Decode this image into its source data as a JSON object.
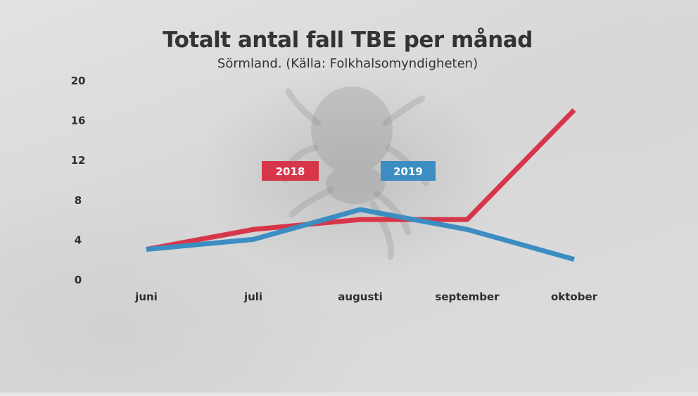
{
  "chart_data": {
    "type": "line",
    "title": "Totalt antal fall TBE per månad",
    "subtitle": "Sörmland. (Källa: Folkhalsomyndigheten)",
    "categories": [
      "juni",
      "juli",
      "augusti",
      "september",
      "oktober"
    ],
    "yticks": [
      0,
      4,
      8,
      12,
      16,
      20
    ],
    "ylim": [
      0,
      20
    ],
    "xlabel": "",
    "ylabel": "",
    "grid": false,
    "series": [
      {
        "name": "2018",
        "color": "#d7364a",
        "values": [
          3,
          5,
          6,
          6,
          17
        ]
      },
      {
        "name": "2019",
        "color": "#3b8dc2",
        "values": [
          3,
          4,
          7,
          5,
          2
        ]
      }
    ]
  }
}
